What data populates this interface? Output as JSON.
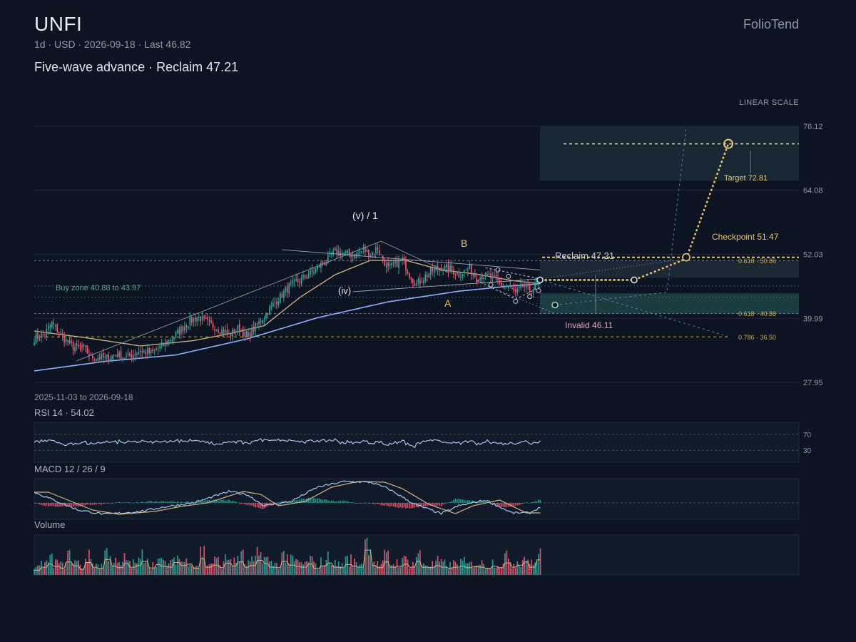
{
  "header": {
    "ticker": "UNFI",
    "meta": "1d · USD · 2026-09-18 · Last 46.82",
    "subtitle": "Five-wave advance · Reclaim 47.21",
    "brand": "FolioTend",
    "scale_label": "LINEAR SCALE",
    "range_label": "2025-11-03 to 2026-09-18"
  },
  "colors": {
    "background": "#0d1421",
    "up": "#26a69a",
    "down": "#ef5370",
    "accent": "#e9c46a",
    "ma_slow": "#8fb0ff",
    "ma_fast": "#d4b483",
    "invalid": "#e1a3c0"
  },
  "chart_data": [
    {
      "type": "candlestick",
      "title": "UNFI",
      "x_start": "2025-11-03",
      "x_end": "2026-09-18",
      "ylim": [
        27.95,
        76.12
      ],
      "y_ticks": [
        "76.12",
        "64.08",
        "52.03",
        "39.99",
        "27.95"
      ],
      "scale": "linear",
      "last": 46.82,
      "close_path": [
        [
          0,
          36.2
        ],
        [
          6,
          37.1
        ],
        [
          10,
          39.1
        ],
        [
          16,
          36.5
        ],
        [
          22,
          34.6
        ],
        [
          28,
          34.4
        ],
        [
          32,
          32.8
        ],
        [
          40,
          32.4
        ],
        [
          46,
          33.2
        ],
        [
          52,
          32.6
        ],
        [
          60,
          33.9
        ],
        [
          66,
          33.4
        ],
        [
          74,
          35.2
        ],
        [
          80,
          36.9
        ],
        [
          86,
          38.9
        ],
        [
          92,
          40.3
        ],
        [
          98,
          39.1
        ],
        [
          104,
          38.1
        ],
        [
          110,
          36.9
        ],
        [
          116,
          38.3
        ],
        [
          120,
          36.3
        ],
        [
          126,
          38.8
        ],
        [
          132,
          41.3
        ],
        [
          138,
          43.8
        ],
        [
          144,
          45.9
        ],
        [
          150,
          47.1
        ],
        [
          156,
          48.3
        ],
        [
          162,
          50.1
        ],
        [
          166,
          51.1
        ],
        [
          170,
          52.6
        ],
        [
          176,
          52.1
        ],
        [
          182,
          51.9
        ],
        [
          186,
          52.9
        ],
        [
          190,
          52.1
        ],
        [
          194,
          53.2
        ],
        [
          197,
          51.1
        ],
        [
          200,
          49.3
        ],
        [
          204,
          50.2
        ],
        [
          208,
          51.1
        ],
        [
          212,
          48.3
        ],
        [
          216,
          46.4
        ],
        [
          220,
          47.6
        ],
        [
          224,
          48.8
        ],
        [
          230,
          49.6
        ],
        [
          236,
          49.1
        ],
        [
          240,
          48.3
        ],
        [
          246,
          49.4
        ],
        [
          250,
          47.6
        ],
        [
          254,
          48.1
        ],
        [
          260,
          47.3
        ],
        [
          264,
          46.4
        ],
        [
          268,
          45.9
        ],
        [
          272,
          44.6
        ],
        [
          276,
          46.1
        ],
        [
          280,
          45.1
        ],
        [
          284,
          46.3
        ],
        [
          286,
          46.82
        ]
      ],
      "ma_fast_path": [
        [
          0,
          37.6
        ],
        [
          30,
          36.3
        ],
        [
          60,
          34.8
        ],
        [
          90,
          35.8
        ],
        [
          110,
          37.1
        ],
        [
          130,
          38.6
        ],
        [
          150,
          43.9
        ],
        [
          170,
          48.2
        ],
        [
          190,
          50.9
        ],
        [
          210,
          50.9
        ],
        [
          230,
          49.1
        ],
        [
          250,
          48.3
        ],
        [
          270,
          47.1
        ],
        [
          286,
          46.5
        ]
      ],
      "ma_slow_path": [
        [
          0,
          30.1
        ],
        [
          40,
          31.9
        ],
        [
          80,
          33.1
        ],
        [
          120,
          36.1
        ],
        [
          160,
          40.1
        ],
        [
          200,
          43.1
        ],
        [
          240,
          45.1
        ],
        [
          270,
          46.1
        ],
        [
          286,
          46.5
        ]
      ],
      "volume_relative": [
        0.18,
        0.3,
        0.42,
        0.33,
        0.26,
        0.5,
        0.35,
        0.22,
        0.48,
        0.3,
        0.25,
        0.6,
        0.34,
        0.28,
        0.44,
        0.3,
        0.36,
        0.52,
        0.27,
        0.4,
        0.33,
        0.3,
        0.48,
        0.36,
        0.42,
        0.26,
        0.62,
        0.3,
        0.38,
        0.28,
        0.45,
        0.34,
        0.5,
        0.3,
        0.36,
        0.56,
        0.44,
        0.3,
        0.28,
        0.52,
        0.38,
        0.33,
        0.3,
        0.42,
        0.26,
        0.35,
        0.46,
        0.3,
        0.28,
        0.4,
        0.34,
        0.3,
        0.96,
        0.36,
        0.28,
        0.5,
        0.3,
        0.34,
        0.42,
        0.3,
        0.52,
        0.3,
        0.28,
        0.36,
        0.3,
        0.26,
        0.3,
        0.34,
        0.28,
        0.32,
        0.3,
        0.26,
        0.34,
        0.28,
        0.46,
        0.3,
        0.38,
        0.5,
        0.3,
        0.58
      ],
      "levels": {
        "reclaim": 47.21,
        "invalid": 46.11,
        "checkpoint": 51.47,
        "target": 72.81,
        "fib_0_618_upper": 50.86,
        "fib_0_618_lower": 40.88,
        "fib_0_786": 36.5,
        "buy_zone": [
          40.88,
          43.97
        ]
      },
      "annotations": {
        "reclaim": "Reclaim 47.21",
        "invalid": "Invalid 46.11",
        "checkpoint": "Checkpoint 51.47",
        "target": "Target 72.81",
        "buy_zone": "Buy zone 40.88 to 43.97",
        "fib_upper": "0.618 · 50.86",
        "fib_lower": "0.618 · 40.88",
        "fib_786": "0.786 · 36.50",
        "wave_v": "(v) / 1",
        "wave_iv": "(iv)",
        "wave_a": "A",
        "wave_b": "B"
      },
      "projection": [
        [
          286,
          47.21
        ],
        [
          330,
          47.21
        ],
        [
          354,
          51.47
        ],
        [
          377,
          72.81
        ]
      ]
    },
    {
      "type": "line",
      "title": "RSI 14 · 54.02",
      "value": 54.02,
      "ylim": [
        0,
        100
      ],
      "y_ticks": [
        "70",
        "30"
      ]
    },
    {
      "type": "line",
      "title": "MACD 12 / 26 / 9",
      "params": [
        12,
        26,
        9
      ]
    },
    {
      "type": "bar",
      "title": "Volume"
    }
  ]
}
